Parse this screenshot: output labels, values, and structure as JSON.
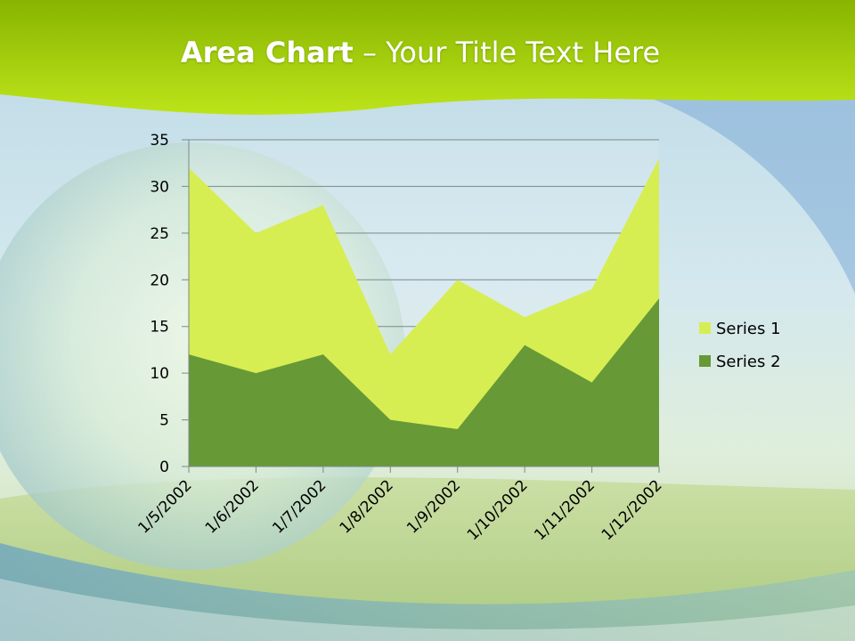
{
  "slide": {
    "title_bold": "Area Chart",
    "title_rest": " – Your Title Text Here"
  },
  "colors": {
    "series_1": "#d6ee52",
    "series_2": "#679936",
    "header": "#a8d20c"
  },
  "chart_data": {
    "type": "area",
    "categories": [
      "1/5/2002",
      "1/6/2002",
      "1/7/2002",
      "1/8/2002",
      "1/9/2002",
      "1/10/2002",
      "1/11/2002",
      "1/12/2002"
    ],
    "series": [
      {
        "name": "Series 1",
        "values": [
          32,
          25,
          28,
          12,
          20,
          16,
          19,
          33
        ]
      },
      {
        "name": "Series 2",
        "values": [
          12,
          10,
          12,
          5,
          4,
          13,
          9,
          18
        ]
      }
    ],
    "ylim": [
      0,
      35
    ],
    "yticks": [
      0,
      5,
      10,
      15,
      20,
      25,
      30,
      35
    ],
    "grid": true,
    "legend": "right"
  }
}
